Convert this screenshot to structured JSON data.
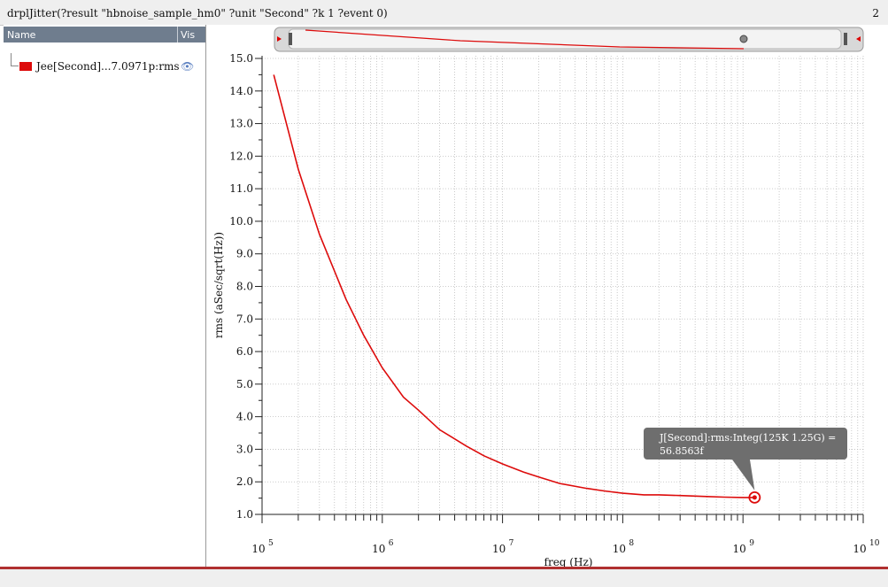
{
  "window": {
    "title": "drplJitter(?result \"hbnoise_sample_hm0\" ?unit \"Second\" ?k 1 ?event 0)",
    "subwindow_number": "2"
  },
  "legend_panel": {
    "col_name": "Name",
    "col_vis": "Vis",
    "items": [
      {
        "label": "Jee[Second]...7.0971p:rms",
        "color": "#dd0b0b",
        "visible_icon": "eye-icon"
      }
    ]
  },
  "colors": {
    "trace": "#dd0b0b",
    "grid": "#bdbdbd",
    "marker_box": "#6e6e6e"
  },
  "chart_data": {
    "type": "line",
    "xlabel": "freq (Hz)",
    "ylabel": "rms (aSec/sqrt(Hz))",
    "x_scale": "log",
    "xlim": [
      100000,
      10000000000
    ],
    "ylim": [
      1.0,
      15.0
    ],
    "y_ticks": [
      "1.0",
      "2.0",
      "3.0",
      "4.0",
      "5.0",
      "6.0",
      "7.0",
      "8.0",
      "9.0",
      "10.0",
      "11.0",
      "12.0",
      "13.0",
      "14.0",
      "15.0"
    ],
    "x_ticks": [
      {
        "base": "10",
        "exp": "5"
      },
      {
        "base": "10",
        "exp": "6"
      },
      {
        "base": "10",
        "exp": "7"
      },
      {
        "base": "10",
        "exp": "8"
      },
      {
        "base": "10",
        "exp": "9"
      },
      {
        "base": "10",
        "exp": "10"
      }
    ],
    "grid": true,
    "series": [
      {
        "x": [
          125000,
          200000,
          300000,
          500000,
          700000,
          1000000,
          1500000,
          2000000,
          3000000,
          5000000,
          7000000,
          10000000,
          15000000,
          20000000,
          30000000,
          50000000,
          70000000,
          100000000,
          150000000,
          200000000,
          300000000,
          500000000,
          700000000,
          1000000000,
          1250000000
        ],
        "y": [
          14.5,
          11.6,
          9.6,
          7.6,
          6.5,
          5.5,
          4.6,
          4.2,
          3.6,
          3.1,
          2.8,
          2.55,
          2.3,
          2.15,
          1.95,
          1.8,
          1.72,
          1.65,
          1.6,
          1.6,
          1.58,
          1.55,
          1.53,
          1.52,
          1.52
        ]
      }
    ],
    "marker": {
      "x": 1250000000,
      "y": 1.52,
      "label_line1": "J[Second]:rms:Integ(125K 1.25G) =",
      "label_line2": "56.8563f"
    }
  }
}
